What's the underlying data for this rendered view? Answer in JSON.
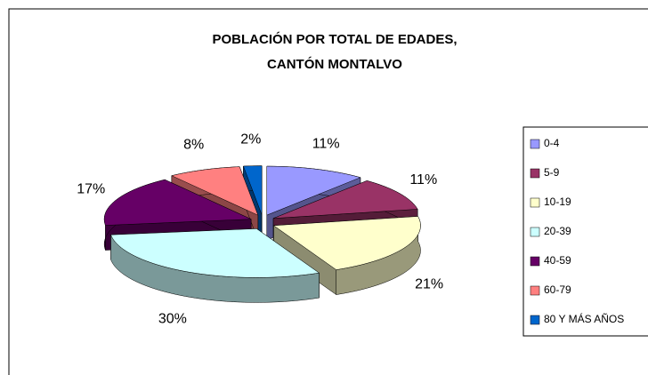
{
  "chart_data": {
    "type": "pie3d",
    "title": [
      "POBLACIÓN POR TOTAL DE EDADES,",
      "CANTÓN  MONTALVO"
    ],
    "categories": [
      "0-4",
      "5-9",
      "10-19",
      "20-39",
      "40-59",
      "60-79",
      "80 Y MÁS AÑOS"
    ],
    "values": [
      11,
      11,
      21,
      30,
      17,
      8,
      2
    ],
    "value_labels": [
      "11%",
      "11%",
      "21%",
      "30%",
      "17%",
      "8%",
      "2%"
    ],
    "colors": [
      "#9999ff",
      "#993366",
      "#ffffcc",
      "#ccffff",
      "#660066",
      "#ff8080",
      "#0066cc"
    ],
    "legend": "right"
  }
}
